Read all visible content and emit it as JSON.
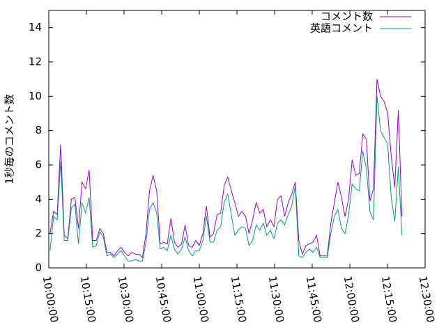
{
  "chart_data": {
    "type": "line",
    "ylabel": "1秒毎のコメント数",
    "ylim": [
      0,
      15
    ],
    "yticks": [
      0,
      2,
      4,
      6,
      8,
      10,
      12,
      14
    ],
    "xlim": [
      "10:00:00",
      "12:30:00"
    ],
    "xticks": [
      "10:00:00",
      "10:15:00",
      "10:30:00",
      "10:45:00",
      "11:00:00",
      "11:15:00",
      "11:30:00",
      "11:45:00",
      "12:00:00",
      "12:15:00",
      "12:30:00"
    ],
    "legend": "top-right",
    "x": [
      "10:00:30",
      "10:01:55",
      "10:03:20",
      "10:04:45",
      "10:06:10",
      "10:07:35",
      "10:09:00",
      "10:10:25",
      "10:11:50",
      "10:13:15",
      "10:14:40",
      "10:16:05",
      "10:17:30",
      "10:18:55",
      "10:20:20",
      "10:21:45",
      "10:23:10",
      "10:24:35",
      "10:26:00",
      "10:27:25",
      "10:28:50",
      "10:30:15",
      "10:31:40",
      "10:33:05",
      "10:34:30",
      "10:35:55",
      "10:37:20",
      "10:38:45",
      "10:40:10",
      "10:41:35",
      "10:43:00",
      "10:44:25",
      "10:45:50",
      "10:47:15",
      "10:48:40",
      "10:50:05",
      "10:51:30",
      "10:52:55",
      "10:54:20",
      "10:55:45",
      "10:57:10",
      "10:58:35",
      "11:00:00",
      "11:01:25",
      "11:02:50",
      "11:04:15",
      "11:05:40",
      "11:07:05",
      "11:08:30",
      "11:09:55",
      "11:11:20",
      "11:12:45",
      "11:14:10",
      "11:15:35",
      "11:17:00",
      "11:18:25",
      "11:19:50",
      "11:21:15",
      "11:22:40",
      "11:24:05",
      "11:25:30",
      "11:26:55",
      "11:28:20",
      "11:29:45",
      "11:31:10",
      "11:32:35",
      "11:34:00",
      "11:35:25",
      "11:36:50",
      "11:38:15",
      "11:39:40",
      "11:41:05",
      "11:42:30",
      "11:43:55",
      "11:45:20",
      "11:46:45",
      "11:48:10",
      "11:49:35",
      "11:51:00",
      "11:52:25",
      "11:53:50",
      "11:55:15",
      "11:56:40",
      "11:58:05",
      "11:59:30",
      "12:00:55",
      "12:02:20",
      "12:03:45",
      "12:05:10",
      "12:06:35",
      "12:08:00",
      "12:09:25",
      "12:10:50",
      "12:12:15",
      "12:13:40",
      "12:15:05",
      "12:16:30",
      "12:17:55",
      "12:19:20",
      "12:20:45"
    ],
    "series": [
      {
        "name": "コメント数",
        "color": "#9400d3",
        "values": [
          2.0,
          3.3,
          3.1,
          7.2,
          1.9,
          1.7,
          4.0,
          4.1,
          2.3,
          5.0,
          4.6,
          5.7,
          1.6,
          1.6,
          2.3,
          2.0,
          0.9,
          0.9,
          0.7,
          1.0,
          1.2,
          0.9,
          0.7,
          0.9,
          0.8,
          0.8,
          0.6,
          2.0,
          4.5,
          5.4,
          4.5,
          1.4,
          1.5,
          1.4,
          2.9,
          1.5,
          1.2,
          1.4,
          2.5,
          1.3,
          1.2,
          1.6,
          1.3,
          2.0,
          3.6,
          1.8,
          2.0,
          3.1,
          3.2,
          4.8,
          5.3,
          4.5,
          3.8,
          3.0,
          3.3,
          3.0,
          2.0,
          2.8,
          3.8,
          3.2,
          3.4,
          2.4,
          2.8,
          2.4,
          4.0,
          4.2,
          3.0,
          3.8,
          4.3,
          5.0,
          1.6,
          0.8,
          1.3,
          1.4,
          1.5,
          1.9,
          0.7,
          0.7,
          0.7,
          2.6,
          3.8,
          5.0,
          4.1,
          3.0,
          4.0,
          6.3,
          5.4,
          5.5,
          7.8,
          7.5,
          3.9,
          4.6,
          11.0,
          10.0,
          9.7,
          9.0,
          6.5,
          4.7,
          9.2,
          3.0
        ]
      },
      {
        "name": "英語コメント",
        "color": "#009e73",
        "values": [
          1.0,
          3.0,
          2.8,
          6.2,
          1.6,
          1.6,
          3.5,
          3.7,
          1.4,
          3.8,
          3.2,
          4.1,
          1.2,
          1.3,
          2.1,
          1.8,
          0.7,
          0.8,
          0.6,
          0.8,
          1.0,
          0.7,
          0.4,
          0.4,
          0.5,
          0.4,
          0.4,
          1.5,
          3.4,
          3.8,
          3.2,
          1.1,
          1.2,
          1.0,
          1.9,
          1.1,
          0.8,
          1.1,
          1.8,
          1.0,
          0.7,
          1.0,
          1.0,
          1.6,
          3.0,
          1.5,
          1.5,
          2.2,
          2.4,
          3.8,
          4.3,
          3.1,
          1.9,
          2.2,
          2.4,
          2.3,
          1.3,
          1.6,
          2.5,
          2.2,
          2.6,
          1.9,
          2.2,
          1.7,
          2.6,
          2.8,
          2.5,
          3.1,
          3.6,
          4.8,
          0.7,
          0.6,
          0.9,
          1.1,
          0.9,
          1.2,
          0.6,
          0.6,
          0.6,
          2.0,
          3.0,
          3.4,
          2.3,
          2.0,
          3.1,
          4.9,
          4.6,
          4.5,
          6.8,
          5.8,
          3.3,
          2.8,
          10.0,
          8.0,
          7.6,
          7.2,
          4.1,
          2.7,
          5.9,
          1.9
        ]
      }
    ]
  }
}
